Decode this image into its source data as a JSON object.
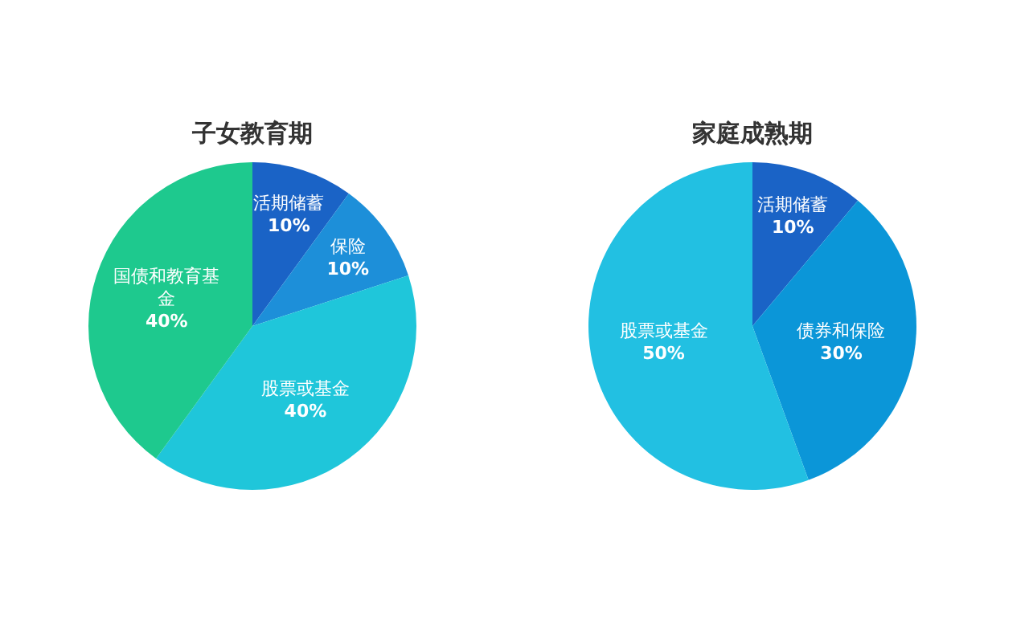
{
  "chart_data": [
    {
      "type": "pie",
      "title": "子女教育期",
      "categories": [
        "活期储蓄",
        "保险",
        "股票或基金",
        "国债和教育基金"
      ],
      "values": [
        10,
        10,
        40,
        40
      ],
      "value_labels": [
        "10%",
        "10%",
        "40%",
        "40%"
      ],
      "colors": [
        "#1a63c6",
        "#1d8fd9",
        "#1fc6da",
        "#1ec98e"
      ]
    },
    {
      "type": "pie",
      "title": "家庭成熟期",
      "categories": [
        "活期储蓄",
        "债券和保险",
        "股票或基金"
      ],
      "values": [
        10,
        30,
        50
      ],
      "value_labels": [
        "10%",
        "30%",
        "50%"
      ],
      "colors": [
        "#1a63c6",
        "#0b96d8",
        "#22c0e2"
      ]
    }
  ]
}
